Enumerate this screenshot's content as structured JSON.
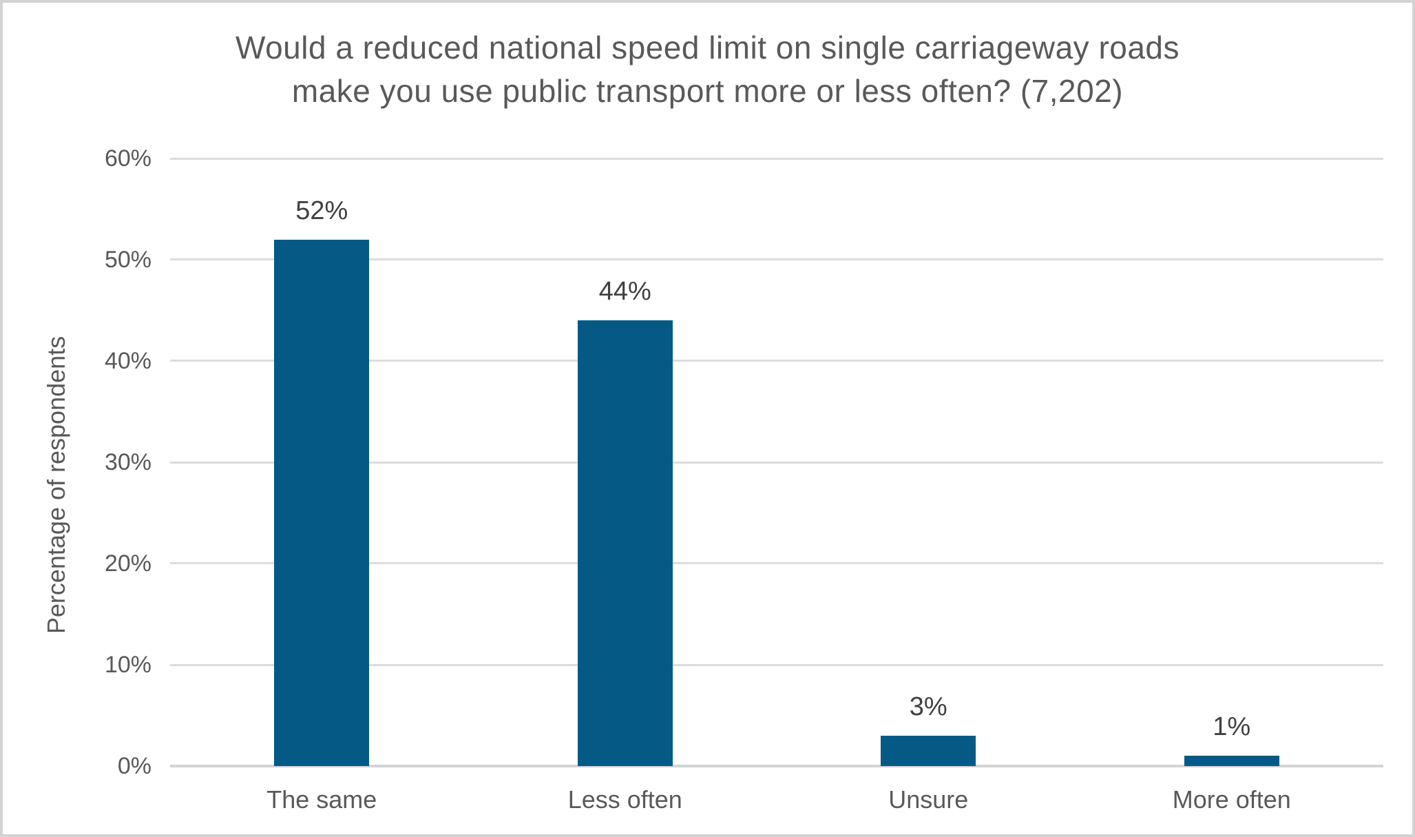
{
  "frame": {
    "background_color": "#ffffff",
    "border_color": "#d3d3d3"
  },
  "chart_data": {
    "type": "bar",
    "title": "Would a reduced national speed limit on single carriageway roads make you use public transport more or less often? (7,202)",
    "title_lines": [
      "Would a reduced national speed limit on single carriageway roads",
      "make you use public transport more or less often? (7,202)"
    ],
    "categories": [
      "The same",
      "Less often",
      "Unsure",
      "More often"
    ],
    "values": [
      52,
      44,
      3,
      1
    ],
    "bar_labels": [
      "52%",
      "44%",
      "3%",
      "1%"
    ],
    "xlabel": "",
    "ylabel": "Percentage of respondents",
    "ylim": [
      0,
      60
    ],
    "ytick_values": [
      0,
      10,
      20,
      30,
      40,
      50,
      60
    ],
    "ytick_labels": [
      "0%",
      "10%",
      "20%",
      "30%",
      "40%",
      "50%",
      "60%"
    ],
    "grid": "horizontal",
    "legend_position": "none",
    "colors": {
      "bar": "#045a84",
      "gridline": "#dcdcdc",
      "baseline": "#d3d3d3",
      "title_text": "#595959",
      "axis_text": "#595959",
      "value_label_text": "#404040"
    }
  }
}
